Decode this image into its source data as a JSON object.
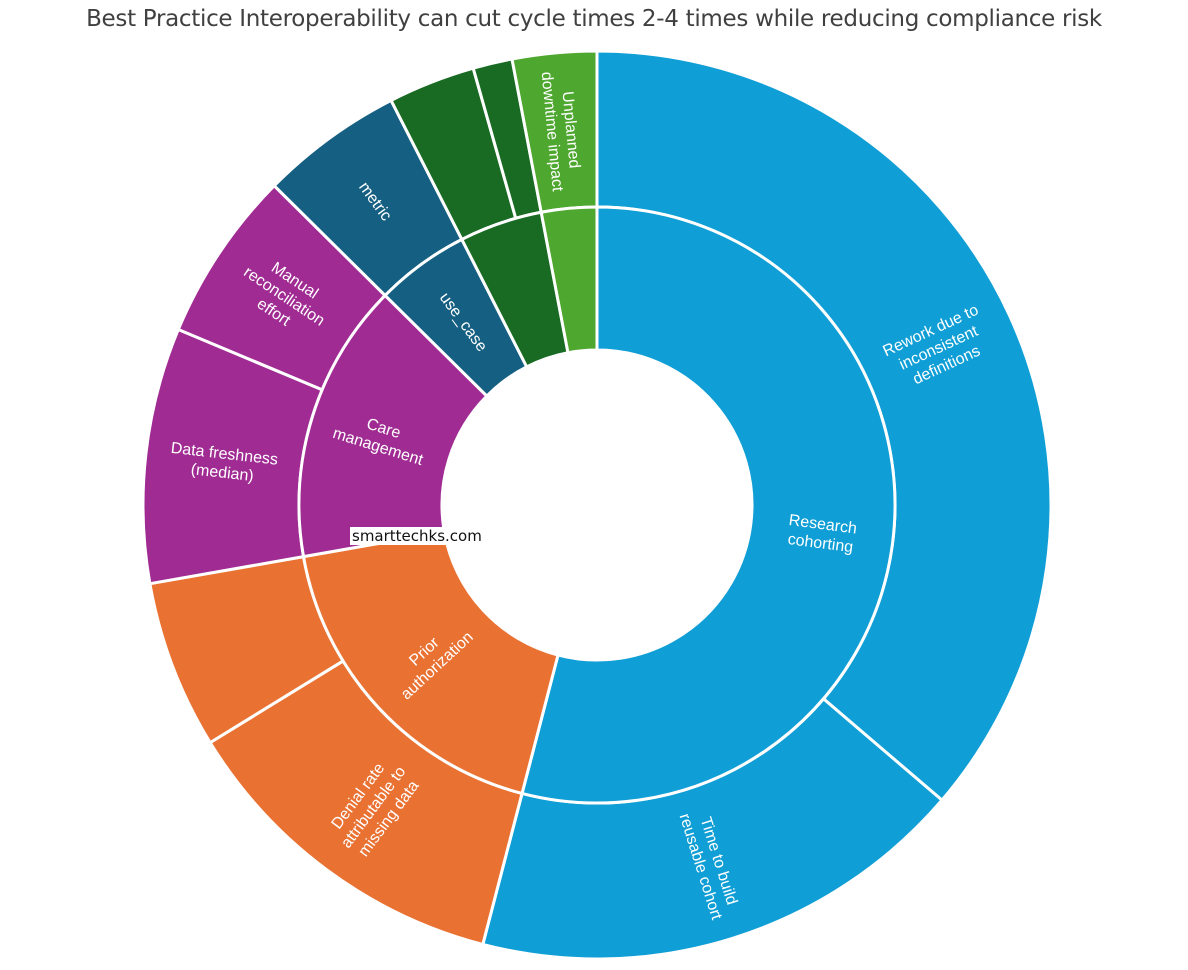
{
  "chart_data": {
    "type": "sunburst",
    "title": "Best Practice Interoperability can cut cycle times 2-4 times while reducing compliance risk",
    "values_note_unit": "share of total (%)",
    "colors": {
      "blue": "#0F9ED5",
      "orange": "#E97132",
      "purple": "#A02B93",
      "teal": "#156082",
      "darkgreen": "#196B24",
      "green": "#4EA72E"
    },
    "groups": [
      {
        "name": "Research cohorting",
        "color": "#0F9ED5",
        "children": [
          {
            "name": "Rework due to inconsistent definitions",
            "value": 36.3
          },
          {
            "name": "Time to build reusable cohort",
            "value": 17.8
          }
        ]
      },
      {
        "name": "Prior authorization",
        "color": "#E97132",
        "children": [
          {
            "name": "Denial rate attributable to missing data",
            "value": 12.2
          },
          {
            "name": "",
            "value": 6.0
          }
        ]
      },
      {
        "name": "Care management",
        "color": "#A02B93",
        "children": [
          {
            "name": "Data freshness (median)",
            "value": 9.1
          },
          {
            "name": "Manual reconciliation effort",
            "value": 6.1
          }
        ]
      },
      {
        "name": "use_case",
        "color": "#156082",
        "children": [
          {
            "name": "metric",
            "value": 5.1
          }
        ]
      },
      {
        "name": "",
        "color": "#196B24",
        "children": [
          {
            "name": "",
            "value": 3.1
          },
          {
            "name": "",
            "value": 1.4
          }
        ]
      },
      {
        "name": "",
        "color": "#4EA72E",
        "children": [
          {
            "name": "Unplanned downtime impact",
            "value": 3.0
          }
        ]
      }
    ]
  },
  "watermark": "smarttechks.com"
}
